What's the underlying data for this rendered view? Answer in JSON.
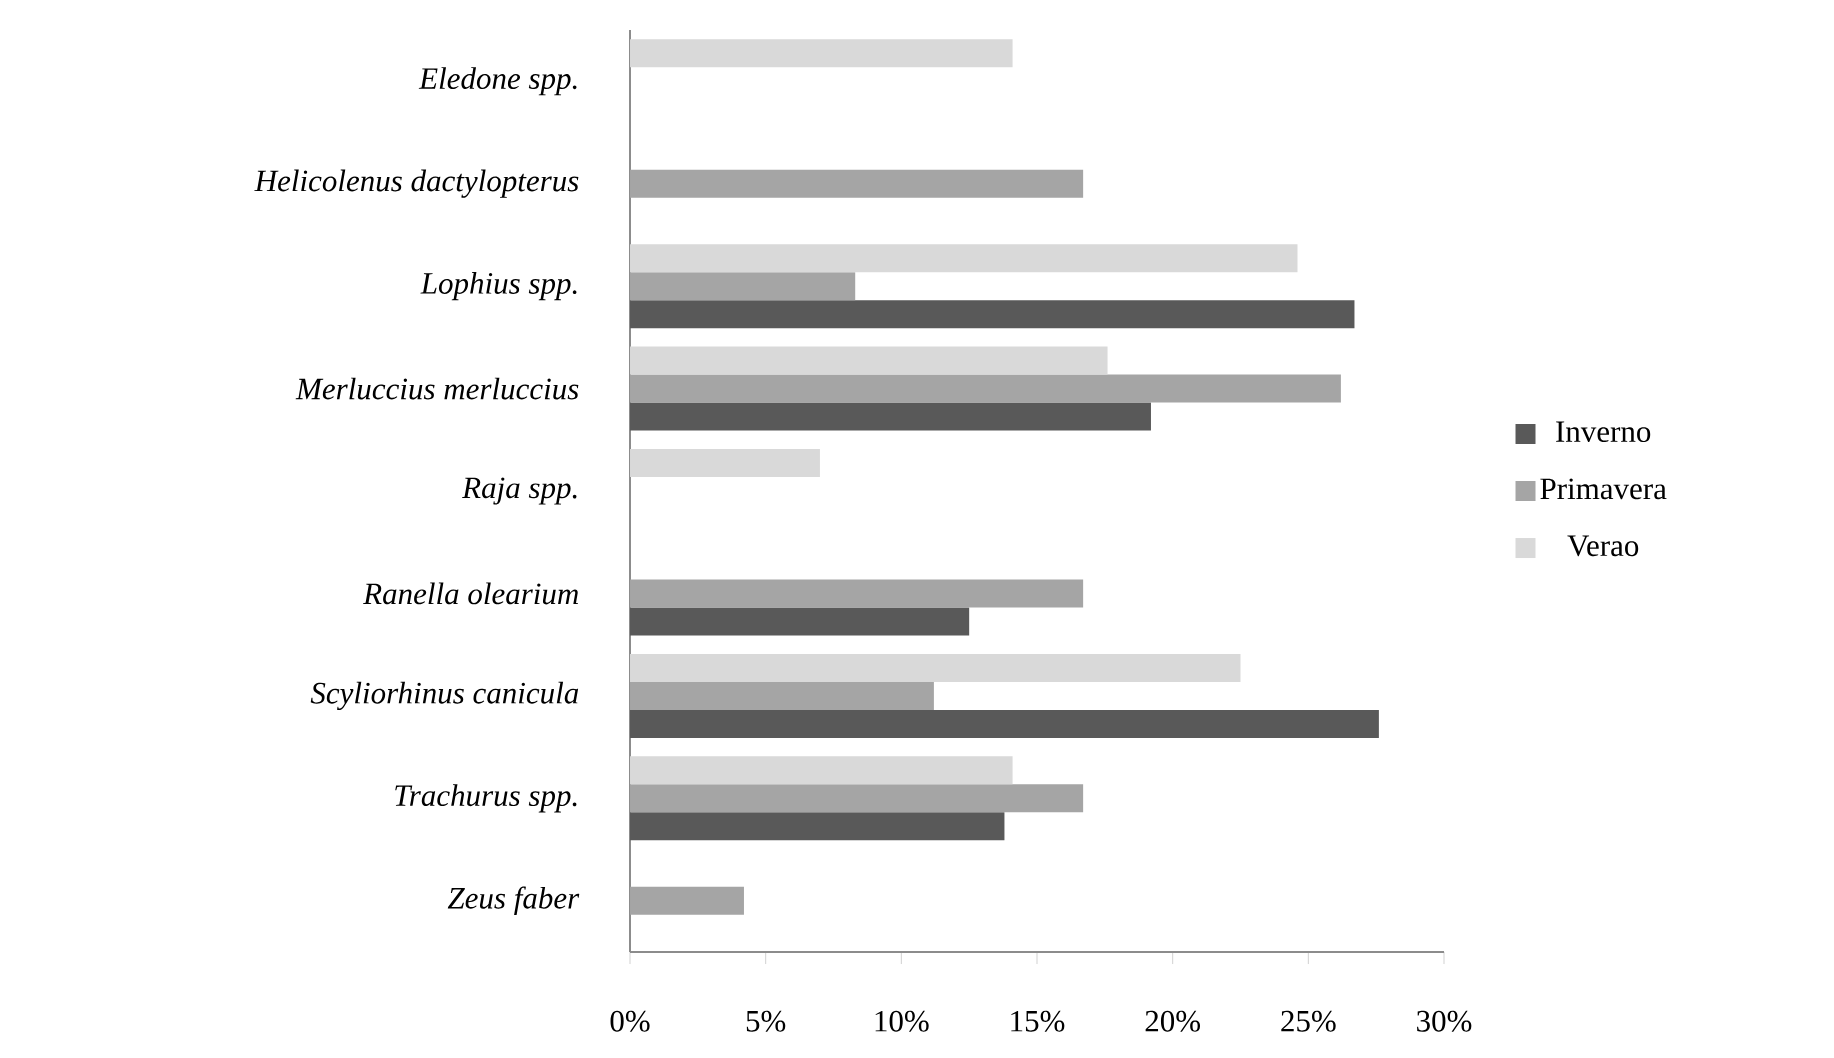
{
  "chart_data": {
    "type": "bar",
    "orientation": "horizontal",
    "categories": [
      "*Eledone spp.*",
      "*Helicolenus dactylopterus*",
      "*Lophius spp.*",
      "*Merluccius merluccius*",
      "*Raja spp.*",
      "*Ranella olearium*",
      "*Scyliorhinus canicula*",
      "*Trachurus spp.*",
      "*Zeus faber*"
    ],
    "series": [
      {
        "name": "Inverno",
        "color": "#595959",
        "values": [
          null,
          null,
          26.7,
          19.2,
          null,
          12.5,
          27.6,
          13.8,
          null
        ]
      },
      {
        "name": "Primavera",
        "color": "#a5a5a5",
        "values": [
          null,
          16.7,
          8.3,
          26.2,
          null,
          16.7,
          11.2,
          16.7,
          4.2
        ]
      },
      {
        "name": "Verao",
        "color": "#d9d9d9",
        "values": [
          14.1,
          null,
          24.6,
          17.6,
          7.0,
          null,
          22.5,
          14.1,
          null
        ]
      }
    ],
    "xlim": [
      0,
      30
    ],
    "xticks": [
      {
        "value": 0,
        "label": "0%"
      },
      {
        "value": 5,
        "label": "5%"
      },
      {
        "value": 10,
        "label": "10%"
      },
      {
        "value": 15,
        "label": "15%"
      },
      {
        "value": 20,
        "label": "20%"
      },
      {
        "value": 25,
        "label": "25%"
      },
      {
        "value": 30,
        "label": "30%"
      }
    ],
    "grid": false,
    "legend": "right"
  }
}
